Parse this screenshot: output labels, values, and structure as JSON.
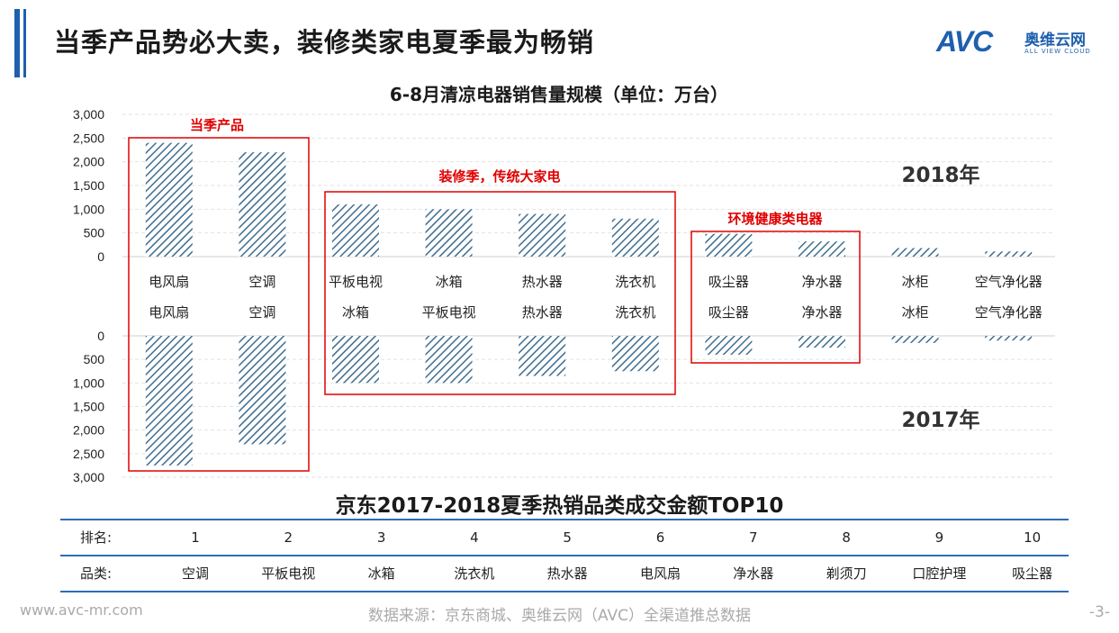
{
  "header": {
    "title": "当季产品势必大卖，装修类家电夏季最为畅销"
  },
  "logo": {
    "mark": "AVC",
    "cn": "奥维云网",
    "en": "ALL VIEW CLOUD"
  },
  "chart_data": {
    "type": "bar",
    "title": "6-8月清凉电器销售量规模（单位：万台）",
    "ylim": [
      0,
      3000
    ],
    "yticks": [
      "3,000",
      "2,500",
      "2,000",
      "1,500",
      "1,000",
      "500",
      "0"
    ],
    "yticks_bottom": [
      "0",
      "500",
      "1,000",
      "1,500",
      "2,000",
      "2,500",
      "3,000"
    ],
    "grid": true,
    "pattern": "diagonal-hatch",
    "color": "#3f6d8f",
    "series": [
      {
        "name": "2018年",
        "categories": [
          "电风扇",
          "空调",
          "平板电视",
          "冰箱",
          "热水器",
          "洗衣机",
          "吸尘器",
          "净水器",
          "冰柜",
          "空气净化器"
        ],
        "values": [
          2400,
          2200,
          1100,
          1000,
          900,
          800,
          480,
          320,
          180,
          110
        ]
      },
      {
        "name": "2017年",
        "categories": [
          "电风扇",
          "空调",
          "冰箱",
          "平板电视",
          "热水器",
          "洗衣机",
          "吸尘器",
          "净水器",
          "冰柜",
          "空气净化器"
        ],
        "values": [
          2750,
          2300,
          1000,
          1000,
          850,
          750,
          400,
          250,
          150,
          100
        ]
      }
    ],
    "annotations": [
      {
        "label": "当季产品",
        "color": "#e00000"
      },
      {
        "label": "装修季，传统大家电",
        "color": "#e00000"
      },
      {
        "label": "环境健康类电器",
        "color": "#e00000"
      }
    ]
  },
  "table": {
    "title": "京东2017-2018夏季热销品类成交金额TOP10",
    "rank_label": "排名:",
    "category_label": "品类:",
    "ranks": [
      "1",
      "2",
      "3",
      "4",
      "5",
      "6",
      "7",
      "8",
      "9",
      "10"
    ],
    "categories": [
      "空调",
      "平板电视",
      "冰箱",
      "洗衣机",
      "热水器",
      "电风扇",
      "净水器",
      "剃须刀",
      "口腔护理",
      "吸尘器"
    ]
  },
  "footer": {
    "website": "www.avc-mr.com",
    "source": "数据来源：京东商城、奥维云网（AVC）全渠道推总数据",
    "page": "-3-"
  }
}
